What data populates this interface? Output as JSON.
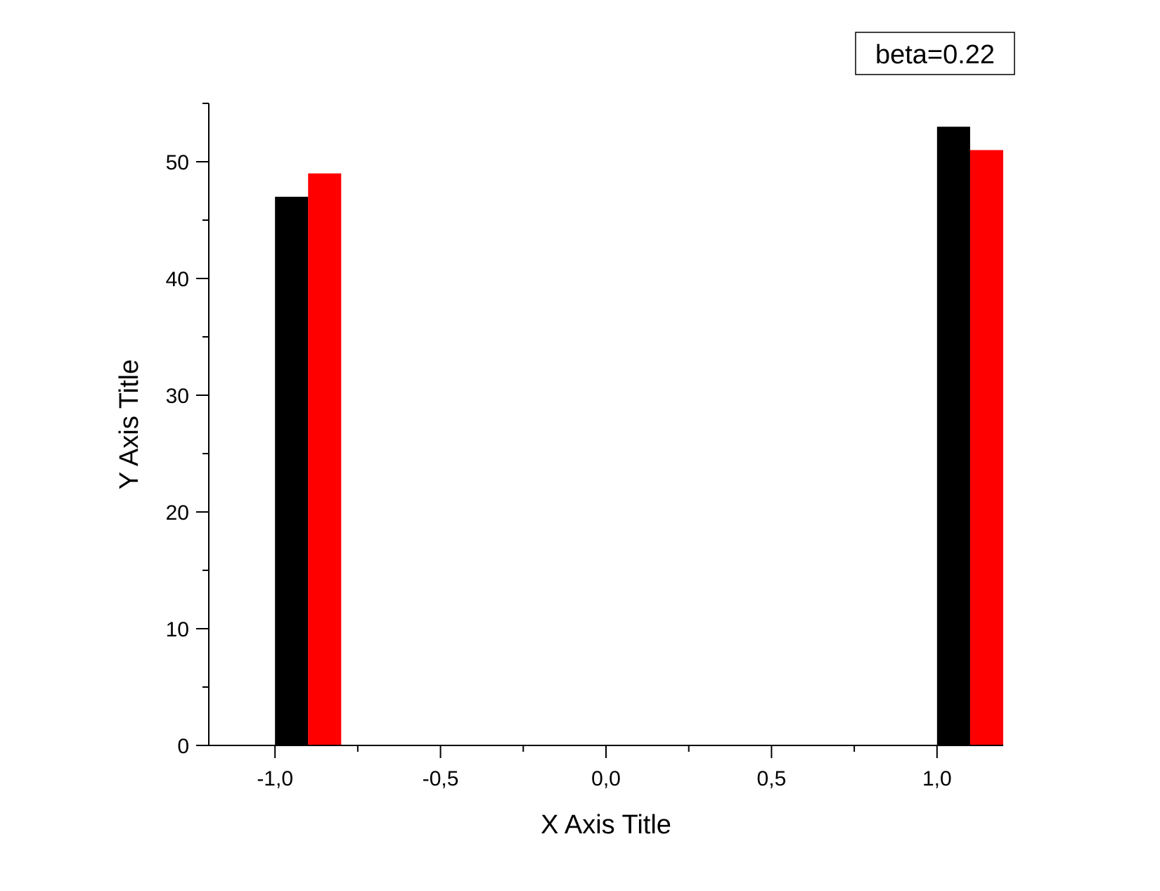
{
  "chart_data": {
    "type": "bar",
    "xlabel": "X Axis Title",
    "ylabel": "Y Axis Title",
    "xlim": [
      -1.2,
      1.2
    ],
    "ylim": [
      0,
      55
    ],
    "x_ticks": [
      -1.0,
      -0.5,
      0.0,
      0.5,
      1.0
    ],
    "x_tick_labels": [
      "-1,0",
      "-0,5",
      "0,0",
      "0,5",
      "1,0"
    ],
    "y_ticks": [
      0,
      10,
      20,
      30,
      40,
      50
    ],
    "y_tick_labels": [
      "0",
      "10",
      "20",
      "30",
      "40",
      "50"
    ],
    "grid": false,
    "annotation": "beta=0.22",
    "bar_width": 0.1,
    "series": [
      {
        "x": [
          -1.0,
          1.0
        ],
        "values": [
          47,
          53
        ],
        "color": "#000000"
      },
      {
        "x": [
          -0.9,
          1.1
        ],
        "values": [
          49,
          51
        ],
        "color": "#ff0000"
      }
    ]
  }
}
